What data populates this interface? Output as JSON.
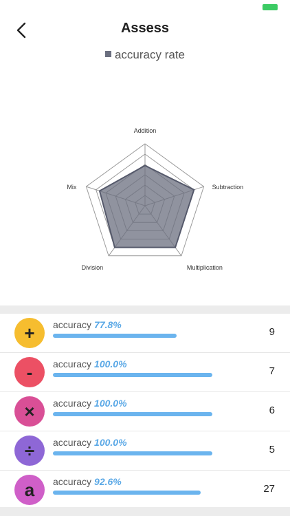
{
  "header": {
    "title": "Assess"
  },
  "legend": {
    "label": "accuracy rate",
    "color": "#6b6f7f"
  },
  "chart_data": {
    "type": "radar",
    "title": "",
    "axes": [
      "Addition",
      "Subtraction",
      "Multiplication",
      "Division",
      "Mix"
    ],
    "series": [
      {
        "name": "accuracy rate",
        "values": [
          77.8,
          100.0,
          100.0,
          100.0,
          92.6
        ]
      }
    ],
    "range": [
      0,
      120
    ],
    "levels": 6
  },
  "items": [
    {
      "symbol": "+",
      "accuracy_label": "accuracy",
      "percent": "77.8%",
      "value": 77.8,
      "count": "9",
      "color": "#f6bd2f"
    },
    {
      "symbol": "-",
      "accuracy_label": "accuracy",
      "percent": "100.0%",
      "value": 100.0,
      "count": "7",
      "color": "#ec5064"
    },
    {
      "symbol": "×",
      "accuracy_label": "accuracy",
      "percent": "100.0%",
      "value": 100.0,
      "count": "6",
      "color": "#d94f96"
    },
    {
      "symbol": "÷",
      "accuracy_label": "accuracy",
      "percent": "100.0%",
      "value": 100.0,
      "count": "5",
      "color": "#8e67d6"
    },
    {
      "symbol": "a",
      "accuracy_label": "accuracy",
      "percent": "92.6%",
      "value": 92.6,
      "count": "27",
      "color": "#cf5fc8"
    }
  ]
}
